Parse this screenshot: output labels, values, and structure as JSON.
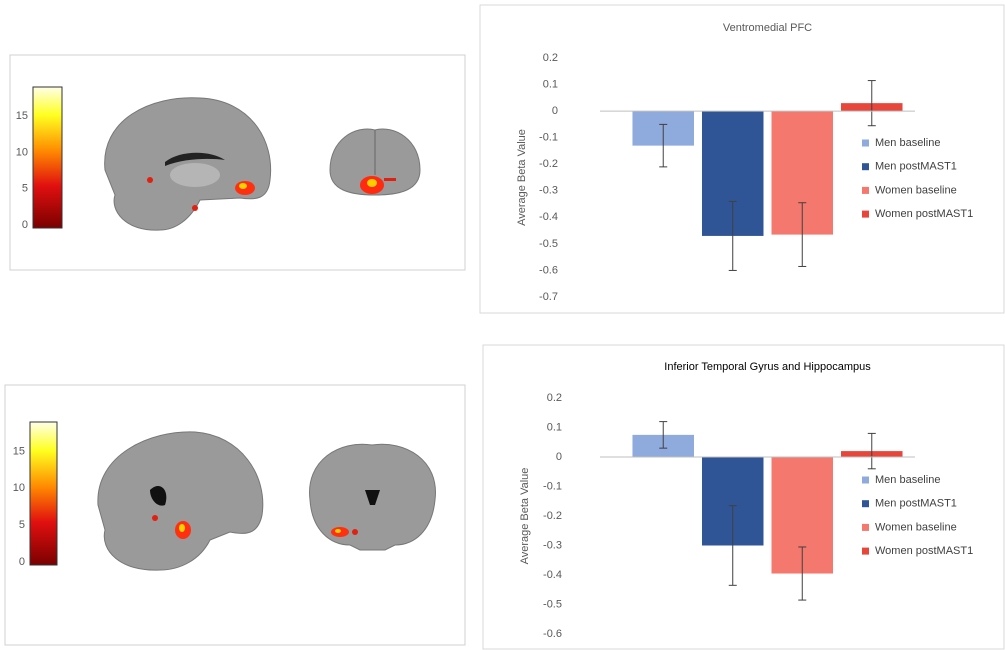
{
  "brain_panels": [
    {
      "colorbar": {
        "lim": [
          0,
          19
        ],
        "ticks": [
          0,
          5,
          10,
          15
        ]
      }
    },
    {
      "colorbar": {
        "lim": [
          0,
          19
        ],
        "ticks": [
          0,
          5,
          10,
          15
        ]
      }
    }
  ],
  "chart_data": [
    {
      "type": "bar",
      "title": "Ventromedial PFC",
      "y_label": "Average Beta Value",
      "categories": [
        null
      ],
      "series": [
        {
          "name": "Men baseline",
          "color": "#8faadc",
          "values": [
            -0.13
          ],
          "errors": [
            0.08
          ]
        },
        {
          "name": "Men postMAST1",
          "color": "#2f5597",
          "values": [
            -0.47
          ],
          "errors": [
            0.13
          ]
        },
        {
          "name": "Women baseline",
          "color": "#f4786e",
          "values": [
            -0.465
          ],
          "errors": [
            0.12
          ]
        },
        {
          "name": "Women postMAST1",
          "color": "#e8463a",
          "values": [
            0.03
          ],
          "errors": [
            0.085
          ]
        }
      ],
      "ylim": [
        -0.7,
        0.2
      ],
      "yticks": [
        0.2,
        0.1,
        0,
        -0.1,
        -0.2,
        -0.3,
        -0.4,
        -0.5,
        -0.6,
        -0.7
      ]
    },
    {
      "type": "bar",
      "title": "Inferior Temporal Gyrus and Hippocampus",
      "y_label": "Average Beta Value",
      "categories": [
        null
      ],
      "series": [
        {
          "name": "Men baseline",
          "color": "#8faadc",
          "values": [
            0.075
          ],
          "errors": [
            0.045
          ]
        },
        {
          "name": "Men postMAST1",
          "color": "#2f5597",
          "values": [
            -0.3
          ],
          "errors": [
            0.135
          ]
        },
        {
          "name": "Women baseline",
          "color": "#f4786e",
          "values": [
            -0.395
          ],
          "errors": [
            0.09
          ]
        },
        {
          "name": "Women postMAST1",
          "color": "#e8463a",
          "values": [
            0.02
          ],
          "errors": [
            0.06
          ]
        }
      ],
      "ylim": [
        -0.6,
        0.2
      ],
      "yticks": [
        0.2,
        0.1,
        0,
        -0.1,
        -0.2,
        -0.3,
        -0.4,
        -0.5,
        -0.6
      ]
    }
  ]
}
